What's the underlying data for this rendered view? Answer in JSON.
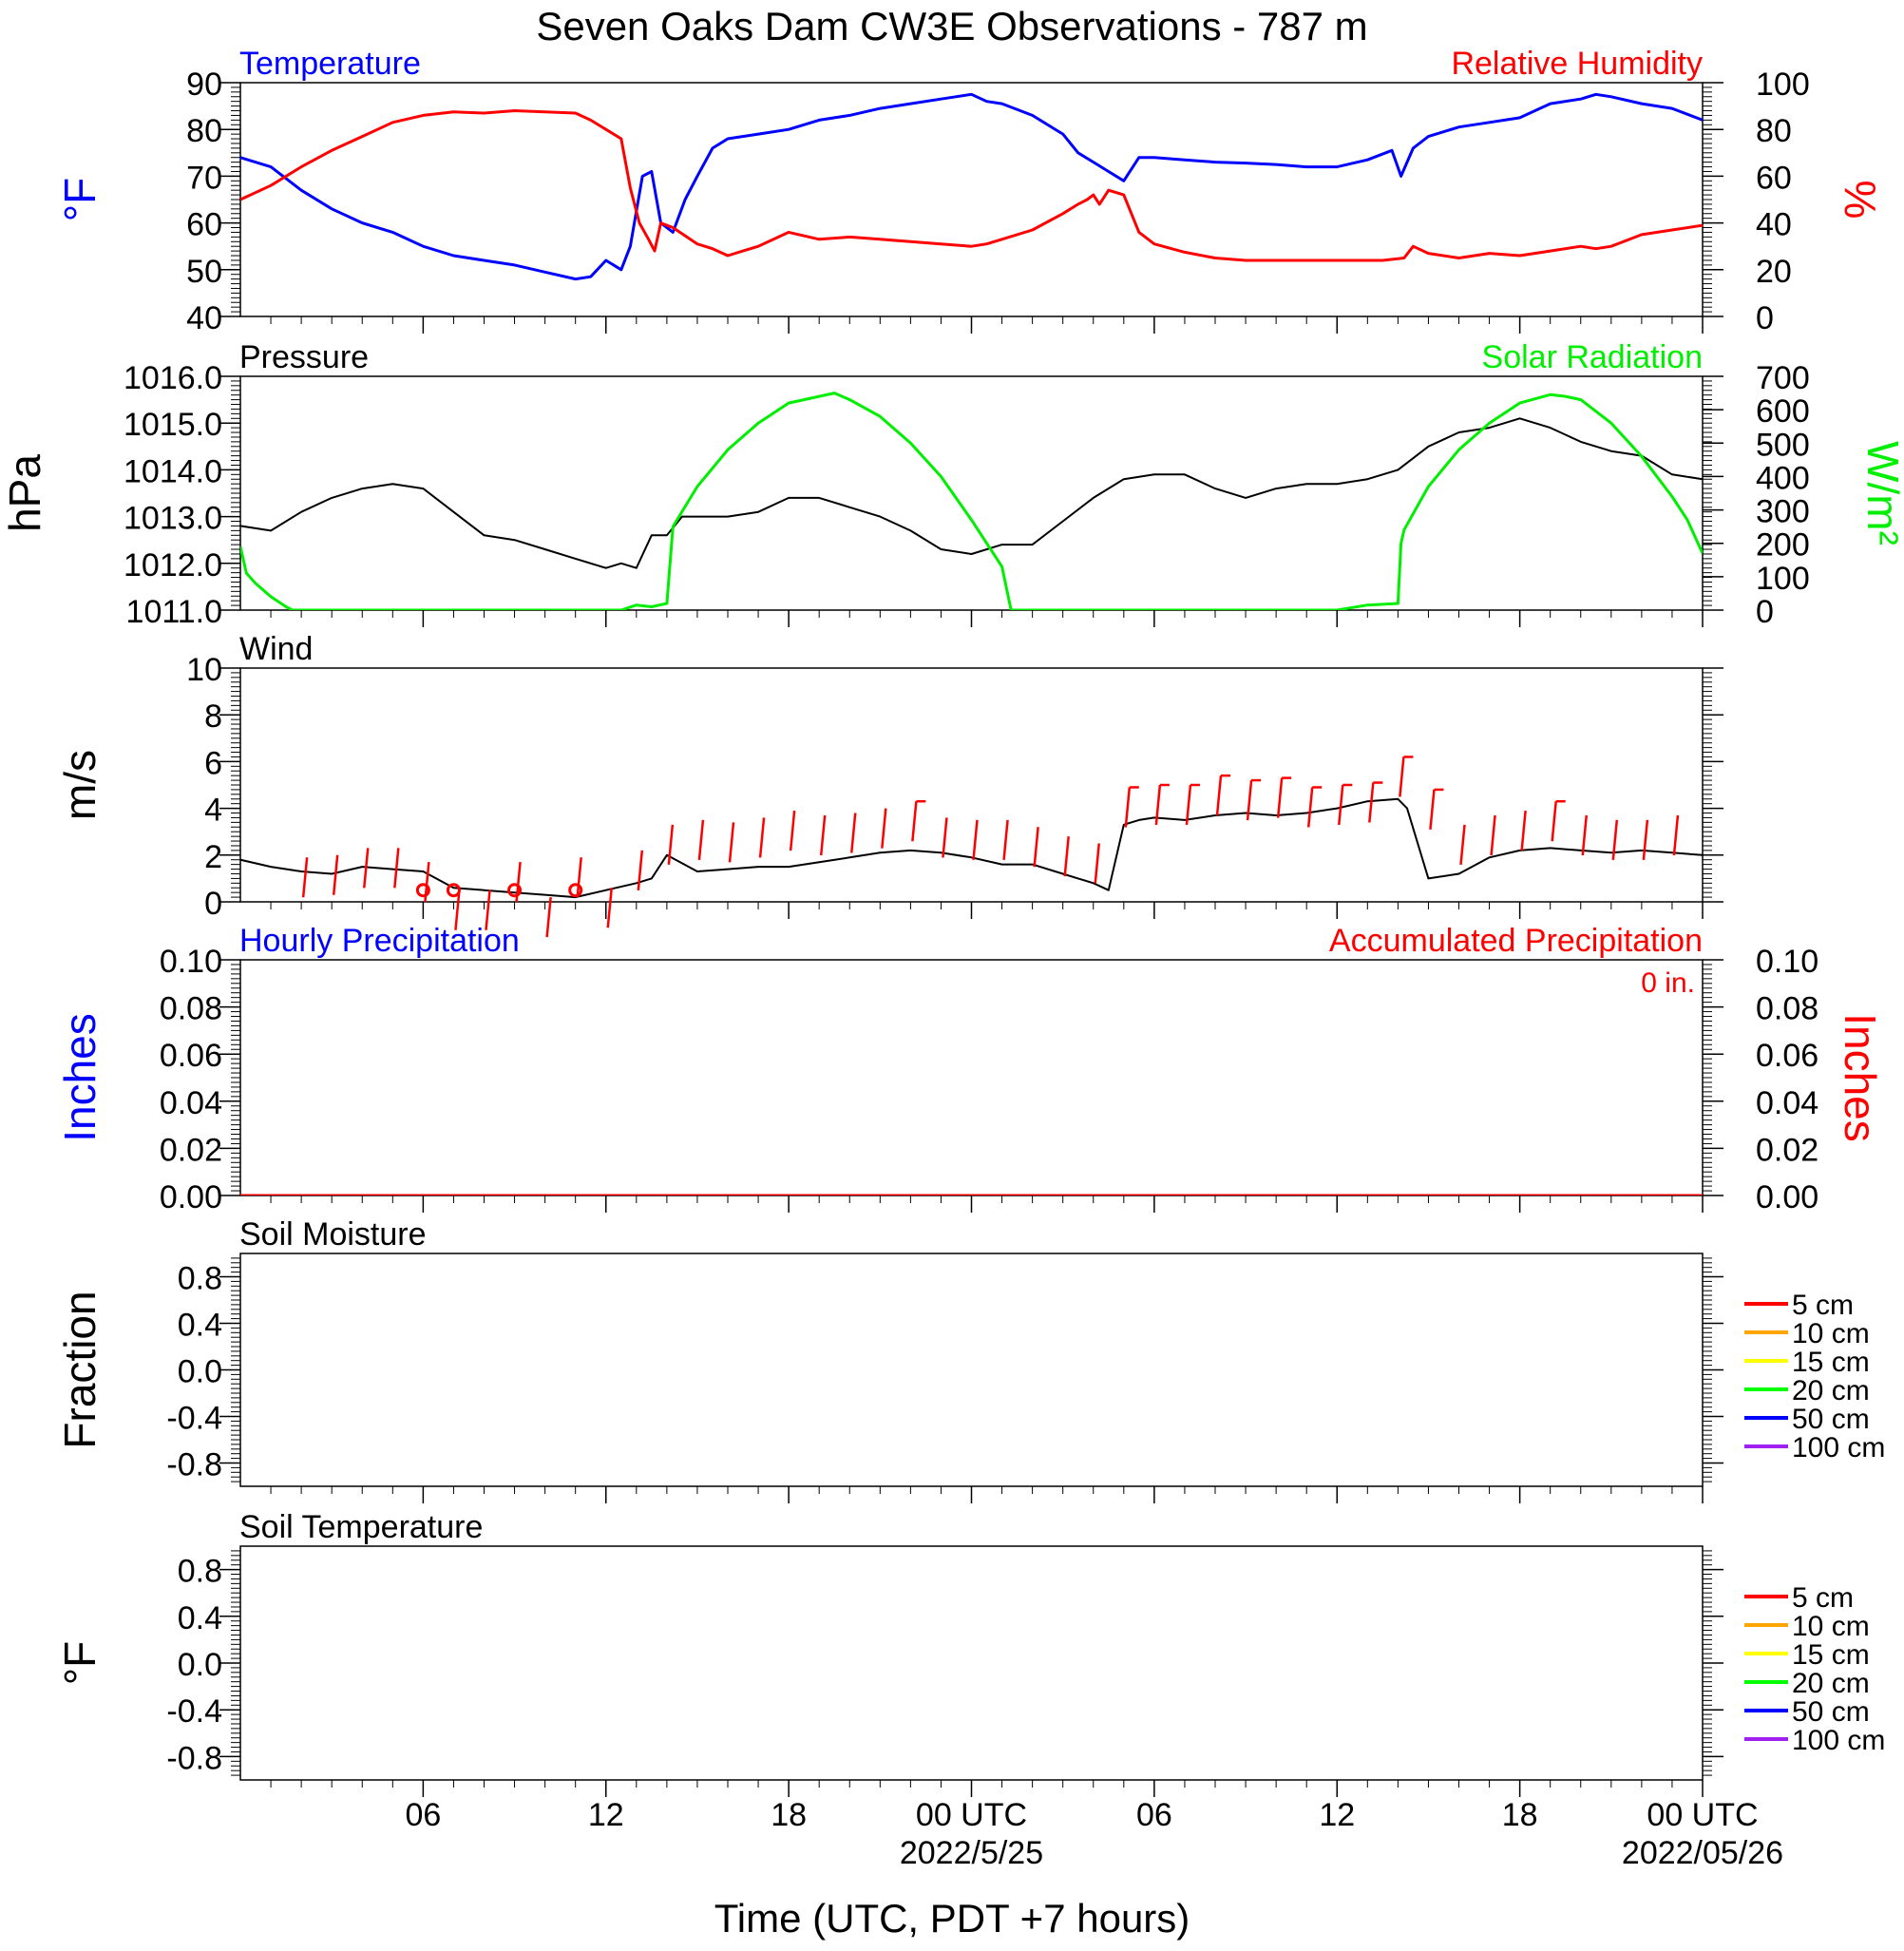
{
  "figure": {
    "title": "Seven Oaks Dam CW3E Observations - 787 m",
    "xlabel": "Time (UTC, PDT +7 hours)",
    "x_range_hours": [
      0,
      48
    ],
    "x_ticks": [
      {
        "t": 6,
        "label": "06",
        "date": ""
      },
      {
        "t": 12,
        "label": "12",
        "date": ""
      },
      {
        "t": 18,
        "label": "18",
        "date": ""
      },
      {
        "t": 24,
        "label": "00 UTC",
        "date": "2022/5/25"
      },
      {
        "t": 30,
        "label": "06",
        "date": ""
      },
      {
        "t": 36,
        "label": "12",
        "date": ""
      },
      {
        "t": 42,
        "label": "18",
        "date": ""
      },
      {
        "t": 48,
        "label": "00 UTC",
        "date": "2022/05/26"
      }
    ]
  },
  "colors": {
    "temperature": "#0000ff",
    "humidity": "#ff0000",
    "pressure": "#000000",
    "solar": "#00ee00",
    "wind": "#000000",
    "wind_barb": "#ff0000",
    "precip_hourly": "#0000ff",
    "precip_accum": "#ff0000"
  },
  "chart_data": [
    {
      "id": "temp_rh",
      "type": "line",
      "title_left": "Temperature",
      "title_right": "Relative Humidity",
      "ylabel_left": "°F",
      "ylabel_right": "%",
      "ylim_left": [
        40,
        90
      ],
      "ylim_right": [
        0,
        100
      ],
      "yticks_left": [
        "40",
        "50",
        "60",
        "70",
        "80",
        "90"
      ],
      "yticks_right": [
        "0",
        "20",
        "40",
        "60",
        "80",
        "100"
      ],
      "series": [
        {
          "name": "Temperature",
          "axis": "left",
          "x": [
            0,
            1,
            2,
            3,
            4,
            5,
            6,
            7,
            8,
            9,
            10,
            11,
            11.5,
            12,
            12.5,
            12.8,
            13.2,
            13.5,
            13.8,
            14.2,
            14.6,
            15,
            15.5,
            16,
            17,
            18,
            19,
            20,
            21,
            22,
            23,
            24,
            24.5,
            25,
            26,
            27,
            27.5,
            28,
            28.5,
            29,
            29.5,
            30,
            31,
            32,
            33,
            34,
            35,
            36,
            37,
            37.8,
            38.1,
            38.5,
            39,
            40,
            41,
            42,
            43,
            44,
            44.5,
            45,
            46,
            47,
            48
          ],
          "y": [
            74,
            72,
            67,
            63,
            60,
            58,
            55,
            53,
            52,
            51,
            49.5,
            48,
            48.5,
            52,
            50,
            55,
            70,
            71,
            60,
            58,
            65,
            70,
            76,
            78,
            79,
            80,
            82,
            83,
            84.5,
            85.5,
            86.5,
            87.5,
            86,
            85.5,
            83,
            79,
            75,
            73,
            71,
            69,
            74,
            74,
            73.5,
            73,
            72.8,
            72.5,
            72,
            72,
            73.5,
            75.5,
            70,
            76,
            78.5,
            80.5,
            81.5,
            82.5,
            85.5,
            86.5,
            87.5,
            87,
            85.5,
            84.5,
            82
          ]
        },
        {
          "name": "Relative Humidity",
          "axis": "right",
          "x": [
            0,
            1,
            2,
            3,
            4,
            5,
            6,
            7,
            8,
            9,
            10,
            11,
            11.5,
            12,
            12.5,
            12.8,
            13.1,
            13.4,
            13.6,
            13.8,
            14.2,
            15,
            15.5,
            16,
            16.5,
            17,
            18,
            19,
            20,
            21,
            22,
            23,
            24,
            24.5,
            25,
            26,
            27,
            27.5,
            27.8,
            28,
            28.2,
            28.5,
            29,
            29.5,
            30,
            31,
            32,
            33,
            34,
            35,
            36,
            37,
            37.5,
            38.2,
            38.5,
            39,
            40,
            41,
            42,
            43,
            44,
            44.5,
            45,
            46,
            47,
            48
          ],
          "y": [
            50,
            56,
            64,
            71,
            77,
            83,
            86,
            87.5,
            87,
            88,
            87.5,
            87,
            84,
            80,
            76,
            55,
            40,
            33,
            28,
            40,
            38,
            31,
            29,
            26,
            28,
            30,
            36,
            33,
            34,
            33,
            32,
            31,
            30,
            31,
            33,
            37,
            44,
            48,
            50,
            52,
            48,
            54,
            52,
            36,
            31,
            27.5,
            25,
            24,
            24,
            24,
            24,
            24,
            24,
            25,
            30,
            27,
            25,
            27,
            26,
            28,
            30,
            29,
            30,
            35,
            37,
            39
          ]
        }
      ]
    },
    {
      "id": "press_solar",
      "type": "line",
      "title_left": "Pressure",
      "title_right": "Solar Radiation",
      "ylabel_left": "hPa",
      "ylabel_right": "W/m²",
      "ylim_left": [
        1011,
        1016
      ],
      "ylim_right": [
        0,
        700
      ],
      "yticks_left": [
        "1011.0",
        "1012.0",
        "1013.0",
        "1014.0",
        "1015.0",
        "1016.0"
      ],
      "yticks_right": [
        "0",
        "100",
        "200",
        "300",
        "400",
        "500",
        "600",
        "700"
      ],
      "series": [
        {
          "name": "Pressure",
          "axis": "left",
          "x": [
            0,
            1,
            2,
            3,
            4,
            5,
            6,
            7,
            8,
            9,
            10,
            11,
            12,
            12.5,
            13,
            13.5,
            14,
            14.5,
            15,
            16,
            17,
            18,
            19,
            20,
            21,
            22,
            23,
            24,
            25,
            26,
            27,
            28,
            29,
            30,
            31,
            32,
            33,
            34,
            35,
            36,
            37,
            38,
            39,
            40,
            41,
            42,
            43,
            44,
            45,
            46,
            47,
            48
          ],
          "y": [
            1012.8,
            1012.7,
            1013.1,
            1013.4,
            1013.6,
            1013.7,
            1013.6,
            1013.1,
            1012.6,
            1012.5,
            1012.3,
            1012.1,
            1011.9,
            1012.0,
            1011.9,
            1012.6,
            1012.6,
            1013.0,
            1013.0,
            1013.0,
            1013.1,
            1013.4,
            1013.4,
            1013.2,
            1013.0,
            1012.7,
            1012.3,
            1012.2,
            1012.4,
            1012.4,
            1012.9,
            1013.4,
            1013.8,
            1013.9,
            1013.9,
            1013.6,
            1013.4,
            1013.6,
            1013.7,
            1013.7,
            1013.8,
            1014.0,
            1014.5,
            1014.8,
            1014.9,
            1015.1,
            1014.9,
            1014.6,
            1014.4,
            1014.3,
            1013.9,
            1013.8
          ]
        },
        {
          "name": "Solar Radiation",
          "axis": "right",
          "x": [
            0,
            0.2,
            0.5,
            1,
            1.5,
            1.7,
            2,
            12.5,
            13,
            13.5,
            14,
            14.2,
            15,
            16,
            17,
            18,
            19,
            19.5,
            20,
            21,
            22,
            23,
            24,
            25,
            25.3,
            26,
            36,
            37,
            38,
            38.1,
            38.2,
            39,
            40,
            41,
            42,
            43,
            43.5,
            44,
            45,
            46,
            47,
            47.5,
            48
          ],
          "y": [
            190,
            110,
            80,
            40,
            10,
            0,
            0,
            0,
            15,
            10,
            20,
            250,
            370,
            480,
            560,
            620,
            640,
            650,
            630,
            580,
            500,
            400,
            270,
            130,
            0,
            0,
            0,
            15,
            20,
            200,
            240,
            370,
            480,
            560,
            620,
            645,
            640,
            630,
            560,
            460,
            340,
            270,
            170
          ]
        }
      ]
    },
    {
      "id": "wind",
      "type": "line",
      "title_left": "Wind",
      "ylabel_left": "m/s",
      "ylim_left": [
        0,
        10
      ],
      "yticks_left": [
        "0",
        "2",
        "4",
        "6",
        "8",
        "10"
      ],
      "series": [
        {
          "name": "Wind",
          "axis": "left",
          "x": [
            0,
            1,
            2,
            3,
            4,
            5,
            6,
            7,
            8,
            9,
            10,
            11,
            12,
            13,
            13.5,
            14,
            15,
            16,
            17,
            18,
            19,
            20,
            21,
            22,
            23,
            24,
            25,
            26,
            27,
            27.5,
            28,
            28.5,
            29,
            29.5,
            30,
            31,
            32,
            33,
            34,
            35,
            36,
            37,
            38,
            38.3,
            39,
            40,
            41,
            42,
            43,
            44,
            45,
            46,
            47,
            48
          ],
          "y": [
            1.8,
            1.5,
            1.3,
            1.2,
            1.5,
            1.4,
            1.3,
            0.6,
            0.5,
            0.4,
            0.3,
            0.2,
            0.5,
            0.8,
            1.0,
            2.0,
            1.3,
            1.4,
            1.5,
            1.5,
            1.7,
            1.9,
            2.1,
            2.2,
            2.1,
            1.9,
            1.6,
            1.6,
            1.2,
            1.0,
            0.8,
            0.5,
            3.3,
            3.5,
            3.6,
            3.5,
            3.7,
            3.8,
            3.7,
            3.8,
            4.0,
            4.3,
            4.4,
            4.0,
            1.0,
            1.2,
            1.9,
            2.2,
            2.3,
            2.2,
            2.1,
            2.2,
            2.1,
            2.0
          ]
        }
      ],
      "barbs": {
        "x": [
          2,
          3,
          4,
          5,
          6,
          7,
          8,
          9,
          10,
          11,
          12,
          13,
          14,
          15,
          16,
          17,
          18,
          19,
          20,
          21,
          22,
          23,
          24,
          25,
          26,
          27,
          28,
          29,
          30,
          31,
          32,
          33,
          34,
          35,
          36,
          37,
          38,
          39,
          40,
          41,
          42,
          43,
          44,
          45,
          46,
          47
        ],
        "speed": [
          1.9,
          2.0,
          2.3,
          2.3,
          1.7,
          0.5,
          0.5,
          1.7,
          0.2,
          1.9,
          0.6,
          2.2,
          3.3,
          3.5,
          3.4,
          3.6,
          3.9,
          3.7,
          3.8,
          4.0,
          4.3,
          3.6,
          3.5,
          3.5,
          3.2,
          2.8,
          2.5,
          4.9,
          5.0,
          5.0,
          5.4,
          5.2,
          5.3,
          4.9,
          5.0,
          5.1,
          6.2,
          4.8,
          3.3,
          3.7,
          3.9,
          4.3,
          3.7,
          3.5,
          3.5,
          3.7
        ],
        "calm_x": [
          6,
          7,
          9,
          11
        ]
      }
    },
    {
      "id": "precip",
      "type": "line",
      "title_left": "Hourly Precipitation",
      "title_right": "Accumulated Precipitation",
      "annotation": "0 in.",
      "ylabel_left": "Inches",
      "ylabel_right": "Inches",
      "ylim_left": [
        0,
        0.1
      ],
      "ylim_right": [
        0,
        0.1
      ],
      "yticks_left": [
        "0.00",
        "0.02",
        "0.04",
        "0.06",
        "0.08",
        "0.10"
      ],
      "yticks_right": [
        "0.00",
        "0.02",
        "0.04",
        "0.06",
        "0.08",
        "0.10"
      ],
      "series": [
        {
          "name": "Accumulated Precipitation",
          "axis": "left",
          "x": [
            0,
            48
          ],
          "y": [
            0,
            0
          ]
        }
      ]
    },
    {
      "id": "soil_moisture",
      "type": "line",
      "title_left": "Soil Moisture",
      "ylabel_left": "Fraction",
      "ylim_left": [
        -1,
        1
      ],
      "yticks_left": [
        "-0.8",
        "-0.4",
        "0.0",
        "0.4",
        "0.8"
      ],
      "legend": [
        {
          "label": "5 cm",
          "color": "#ff0000"
        },
        {
          "label": "10 cm",
          "color": "#ffa500"
        },
        {
          "label": "15 cm",
          "color": "#ffff00"
        },
        {
          "label": "20 cm",
          "color": "#00ff00"
        },
        {
          "label": "50 cm",
          "color": "#0000ff"
        },
        {
          "label": "100 cm",
          "color": "#a020f0"
        }
      ],
      "series": []
    },
    {
      "id": "soil_temp",
      "type": "line",
      "title_left": "Soil Temperature",
      "ylabel_left": "°F",
      "ylim_left": [
        -1,
        1
      ],
      "yticks_left": [
        "-0.8",
        "-0.4",
        "0.0",
        "0.4",
        "0.8"
      ],
      "legend": [
        {
          "label": "5 cm",
          "color": "#ff0000"
        },
        {
          "label": "10 cm",
          "color": "#ffa500"
        },
        {
          "label": "15 cm",
          "color": "#ffff00"
        },
        {
          "label": "20 cm",
          "color": "#00ff00"
        },
        {
          "label": "50 cm",
          "color": "#0000ff"
        },
        {
          "label": "100 cm",
          "color": "#a020f0"
        }
      ],
      "series": []
    }
  ]
}
